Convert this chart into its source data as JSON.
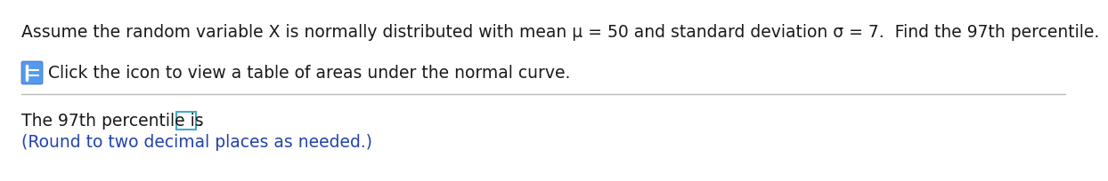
{
  "line1": "Assume the random variable X is normally distributed with mean μ = 50 and standard deviation σ = 7.  Find the 97th percentile.",
  "line2": "Click the icon to view a table of areas under the normal curve.",
  "line3_part1": "The 97th percentile is ",
  "line3_part2": ".",
  "line4": "(Round to two decimal places as needed.)",
  "bg_color": "#ffffff",
  "text_color_main": "#1a1a1a",
  "text_color_blue": "#2244aa",
  "font_size_main": 13.5,
  "separator_color": "#bbbbbb",
  "icon_color_body": "#5599ee",
  "icon_color_dark": "#3366cc",
  "box_edge_color": "#44aacc"
}
